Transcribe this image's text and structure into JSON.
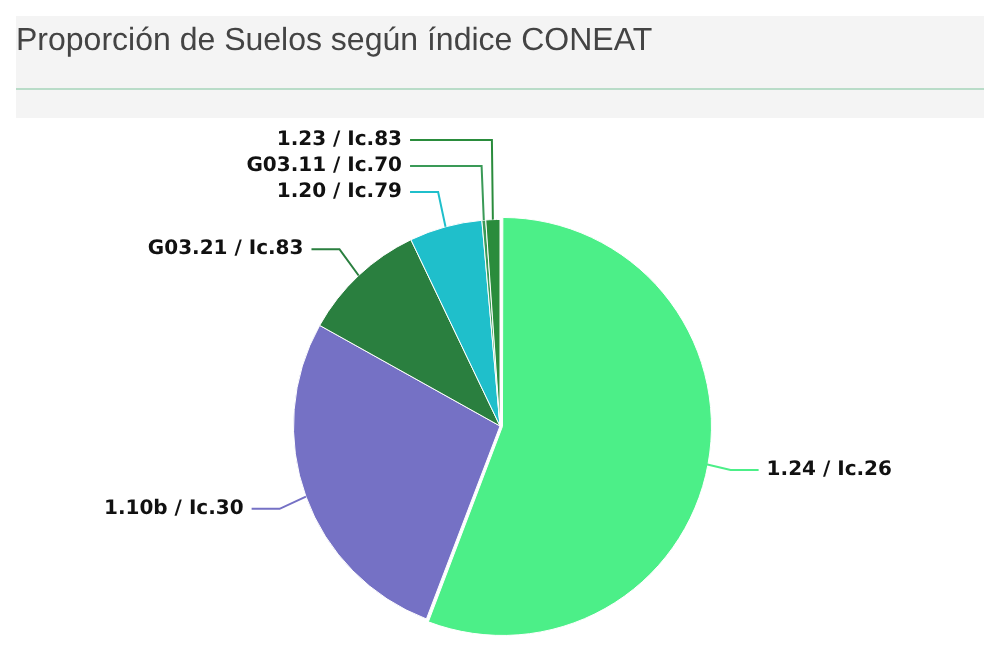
{
  "chart_data": {
    "type": "pie",
    "title": "Proporción de Suelos según índice CONEAT",
    "categories": [
      "1.24 / Ic.26",
      "1.10b / Ic.30",
      "G03.21 / Ic.83",
      "1.20 / Ic.79",
      "G03.11 / Ic.70",
      "1.23 / Ic.83"
    ],
    "values": [
      55.8,
      27.3,
      9.8,
      5.7,
      0.3,
      1.1
    ],
    "colors": [
      "#4cef88",
      "#7571c5",
      "#2a7f3f",
      "#1fbfcb",
      "#3a9a57",
      "#2a8c3c"
    ],
    "legend": false
  }
}
